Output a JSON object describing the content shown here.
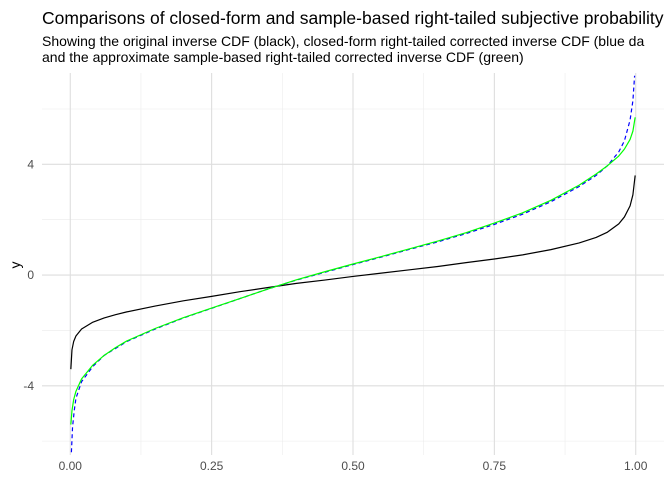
{
  "chart_data": {
    "type": "line",
    "title": "Comparisons of closed-form and sample-based right-tailed subjective probability",
    "subtitle": [
      "Showing the original inverse CDF (black), closed-form right-tailed corrected inverse CDF (blue da",
      "and the approximate sample-based right-tailed corrected inverse CDF (green)"
    ],
    "xlabel": "",
    "ylabel": "y",
    "xlim": [
      -0.05,
      1.05
    ],
    "ylim": [
      -6.5,
      7.3
    ],
    "x_ticks": [
      0.0,
      0.25,
      0.5,
      0.75,
      1.0
    ],
    "x_tick_labels": [
      "0.00",
      "0.25",
      "0.50",
      "0.75",
      "1.00"
    ],
    "y_ticks": [
      -4,
      0,
      4
    ],
    "y_tick_labels": [
      "-4",
      "0",
      "4"
    ],
    "grid": true,
    "series": [
      {
        "color": "#000000",
        "dash": "solid",
        "points": [
          [
            0.001,
            -3.4
          ],
          [
            0.003,
            -2.7
          ],
          [
            0.006,
            -2.4
          ],
          [
            0.01,
            -2.2
          ],
          [
            0.02,
            -1.95
          ],
          [
            0.04,
            -1.7
          ],
          [
            0.06,
            -1.55
          ],
          [
            0.08,
            -1.43
          ],
          [
            0.1,
            -1.33
          ],
          [
            0.15,
            -1.12
          ],
          [
            0.2,
            -0.93
          ],
          [
            0.25,
            -0.77
          ],
          [
            0.3,
            -0.6
          ],
          [
            0.35,
            -0.45
          ],
          [
            0.4,
            -0.3
          ],
          [
            0.45,
            -0.18
          ],
          [
            0.5,
            -0.05
          ],
          [
            0.55,
            0.07
          ],
          [
            0.6,
            0.19
          ],
          [
            0.65,
            0.31
          ],
          [
            0.7,
            0.45
          ],
          [
            0.75,
            0.58
          ],
          [
            0.8,
            0.73
          ],
          [
            0.85,
            0.92
          ],
          [
            0.9,
            1.16
          ],
          [
            0.93,
            1.36
          ],
          [
            0.95,
            1.55
          ],
          [
            0.97,
            1.85
          ],
          [
            0.98,
            2.1
          ],
          [
            0.99,
            2.5
          ],
          [
            0.995,
            2.9
          ],
          [
            0.999,
            3.6
          ]
        ]
      },
      {
        "color": "#0000ff",
        "dash": "dashed",
        "points": [
          [
            0.002,
            -6.4
          ],
          [
            0.004,
            -5.5
          ],
          [
            0.007,
            -4.9
          ],
          [
            0.01,
            -4.45
          ],
          [
            0.02,
            -3.85
          ],
          [
            0.04,
            -3.3
          ],
          [
            0.06,
            -2.9
          ],
          [
            0.08,
            -2.65
          ],
          [
            0.1,
            -2.4
          ],
          [
            0.15,
            -1.95
          ],
          [
            0.2,
            -1.55
          ],
          [
            0.25,
            -1.2
          ],
          [
            0.3,
            -0.85
          ],
          [
            0.35,
            -0.5
          ],
          [
            0.4,
            -0.18
          ],
          [
            0.45,
            0.1
          ],
          [
            0.5,
            0.38
          ],
          [
            0.55,
            0.65
          ],
          [
            0.6,
            0.93
          ],
          [
            0.65,
            1.2
          ],
          [
            0.7,
            1.5
          ],
          [
            0.75,
            1.83
          ],
          [
            0.8,
            2.2
          ],
          [
            0.85,
            2.65
          ],
          [
            0.9,
            3.2
          ],
          [
            0.93,
            3.6
          ],
          [
            0.95,
            3.95
          ],
          [
            0.97,
            4.45
          ],
          [
            0.98,
            4.85
          ],
          [
            0.99,
            5.6
          ],
          [
            0.995,
            6.3
          ],
          [
            0.998,
            7.2
          ]
        ]
      },
      {
        "color": "#00ff00",
        "dash": "solid",
        "points": [
          [
            0.001,
            -5.4
          ],
          [
            0.003,
            -4.9
          ],
          [
            0.006,
            -4.5
          ],
          [
            0.01,
            -4.2
          ],
          [
            0.02,
            -3.75
          ],
          [
            0.04,
            -3.25
          ],
          [
            0.06,
            -2.9
          ],
          [
            0.08,
            -2.62
          ],
          [
            0.1,
            -2.38
          ],
          [
            0.15,
            -1.93
          ],
          [
            0.2,
            -1.54
          ],
          [
            0.25,
            -1.19
          ],
          [
            0.3,
            -0.85
          ],
          [
            0.35,
            -0.5
          ],
          [
            0.4,
            -0.17
          ],
          [
            0.45,
            0.12
          ],
          [
            0.5,
            0.4
          ],
          [
            0.55,
            0.67
          ],
          [
            0.6,
            0.95
          ],
          [
            0.65,
            1.23
          ],
          [
            0.7,
            1.53
          ],
          [
            0.75,
            1.88
          ],
          [
            0.8,
            2.25
          ],
          [
            0.85,
            2.7
          ],
          [
            0.9,
            3.25
          ],
          [
            0.93,
            3.65
          ],
          [
            0.95,
            3.95
          ],
          [
            0.97,
            4.3
          ],
          [
            0.98,
            4.55
          ],
          [
            0.99,
            4.9
          ],
          [
            0.995,
            5.2
          ],
          [
            0.999,
            5.7
          ]
        ]
      }
    ]
  }
}
